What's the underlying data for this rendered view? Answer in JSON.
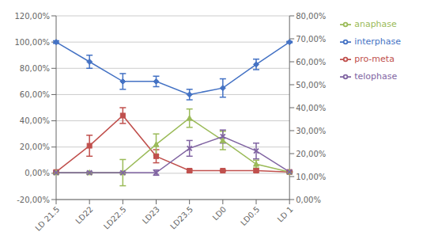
{
  "chart_data": {
    "type": "line",
    "categories": [
      "LD 21.5",
      "LD22",
      "LD22.5",
      "LD23",
      "LD23.5",
      "LD0",
      "LD0.5",
      "LD 1"
    ],
    "series": [
      {
        "name": "interphase",
        "color": "#4472C4",
        "marker": "diamond",
        "values": [
          1.0,
          0.85,
          0.7,
          0.7,
          0.6,
          0.65,
          0.83,
          1.0
        ],
        "errors": [
          0.01,
          0.05,
          0.06,
          0.04,
          0.04,
          0.07,
          0.04,
          0.005
        ]
      },
      {
        "name": "pro-meta",
        "color": "#C0504D",
        "marker": "square",
        "values": [
          0.01,
          0.21,
          0.44,
          0.13,
          0.02,
          0.02,
          0.02,
          0.01
        ],
        "errors": [
          0.01,
          0.08,
          0.06,
          0.05,
          0.01,
          0.005,
          0.01,
          0.005
        ]
      },
      {
        "name": "anaphase",
        "color": "#9BBB59",
        "marker": "triangle",
        "values": [
          0.005,
          0.005,
          0.005,
          0.22,
          0.42,
          0.25,
          0.07,
          0.01
        ],
        "errors": [
          0.005,
          0.005,
          0.1,
          0.08,
          0.07,
          0.07,
          0.03,
          0.005
        ]
      },
      {
        "name": "telophase",
        "color": "#8064A2",
        "marker": "x",
        "values": [
          0.005,
          0.005,
          0.005,
          0.005,
          0.19,
          0.28,
          0.17,
          0.01
        ],
        "errors": [
          0.005,
          0.005,
          0.005,
          0.02,
          0.06,
          0.05,
          0.06,
          0.005
        ]
      }
    ],
    "ylim": [
      -0.2,
      1.2
    ],
    "yticks": [
      {
        "value": -0.2,
        "label": "-20,00%"
      },
      {
        "value": 0.0,
        "label": "0,00%"
      },
      {
        "value": 0.2,
        "label": "20,00%"
      },
      {
        "value": 0.4,
        "label": "40,00%"
      },
      {
        "value": 0.6,
        "label": "60,00%"
      },
      {
        "value": 0.8,
        "label": "80,00%"
      },
      {
        "value": 1.0,
        "label": "100,00%"
      },
      {
        "value": 1.2,
        "label": "120,00%"
      }
    ],
    "y2lim": [
      0.0,
      0.8
    ],
    "y2ticks": [
      {
        "value": 0.0,
        "label": "0,00%"
      },
      {
        "value": 0.1,
        "label": "10,00%"
      },
      {
        "value": 0.2,
        "label": "20,00%"
      },
      {
        "value": 0.3,
        "label": "30,00%"
      },
      {
        "value": 0.4,
        "label": "40,00%"
      },
      {
        "value": 0.5,
        "label": "50,00%"
      },
      {
        "value": 0.6,
        "label": "60,00%"
      },
      {
        "value": 0.7,
        "label": "70,00%"
      },
      {
        "value": 0.8,
        "label": "80,00%"
      }
    ],
    "grid": true,
    "legend": "right"
  }
}
